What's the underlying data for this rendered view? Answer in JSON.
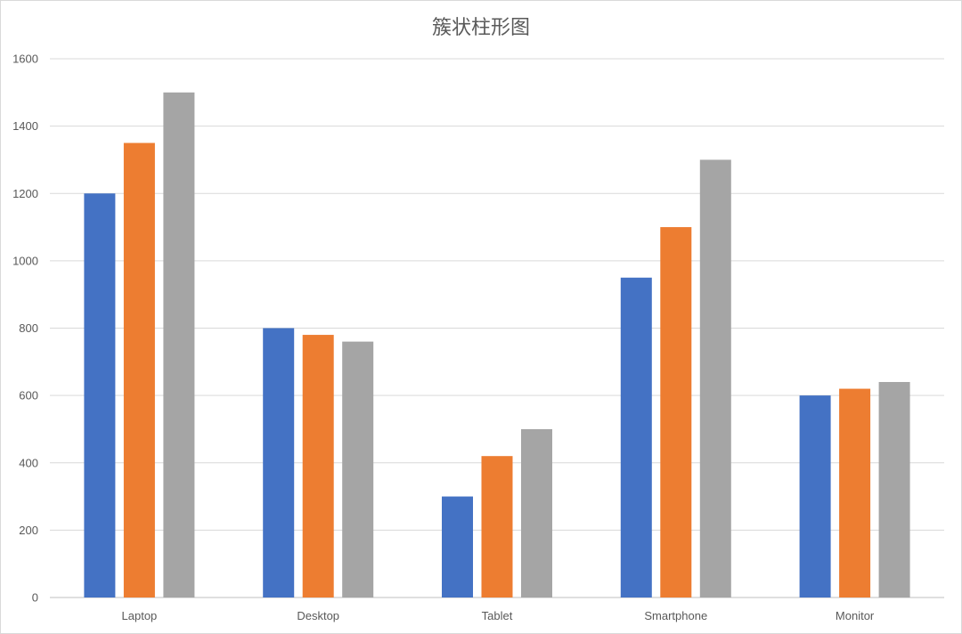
{
  "chart_data": {
    "type": "bar",
    "title": "簇状柱形图",
    "xlabel": "",
    "ylabel": "",
    "ylim": [
      0,
      1600
    ],
    "ytick_step": 200,
    "grid": true,
    "legend": "none",
    "categories": [
      "Laptop",
      "Desktop",
      "Tablet",
      "Smartphone",
      "Monitor"
    ],
    "series": [
      {
        "color": "#4472C4",
        "values": [
          1200,
          800,
          300,
          950,
          600
        ]
      },
      {
        "color": "#ED7D31",
        "values": [
          1350,
          780,
          420,
          1100,
          620
        ]
      },
      {
        "color": "#A5A5A5",
        "values": [
          1500,
          760,
          500,
          1300,
          640
        ]
      }
    ]
  }
}
